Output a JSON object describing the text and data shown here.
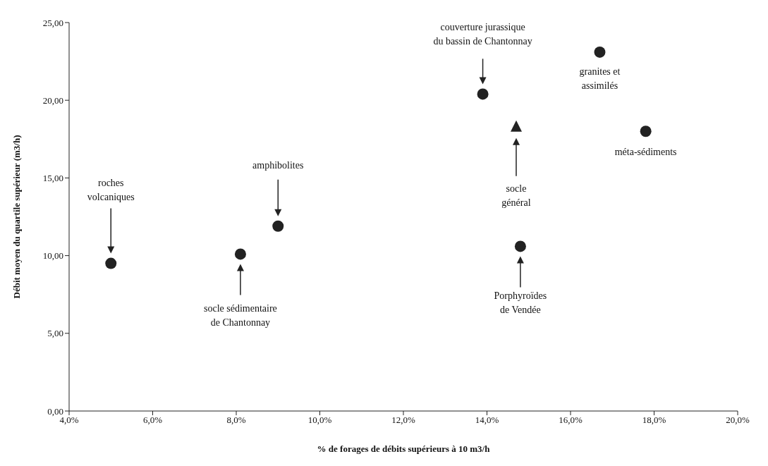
{
  "chart_data": {
    "type": "scatter",
    "xlabel": "% de forages de débits supérieurs à 10 m3/h",
    "ylabel": "Débit moyen du quartile supérieur (m3/h)",
    "series": [
      {
        "marker": "circle",
        "color": "#222222",
        "x": [
          5.0,
          8.1,
          9.0,
          13.9,
          16.7,
          17.8,
          14.8
        ],
        "values": [
          9.5,
          10.1,
          11.9,
          20.4,
          23.1,
          18.0,
          10.6
        ]
      },
      {
        "marker": "triangle",
        "color": "#222222",
        "x": [
          14.7
        ],
        "values": [
          18.3
        ]
      }
    ],
    "xlim": [
      4,
      20
    ],
    "xticks": [
      {
        "value": 4,
        "label": "4,0%"
      },
      {
        "value": 6,
        "label": "6,0%"
      },
      {
        "value": 8,
        "label": "8,0%"
      },
      {
        "value": 10,
        "label": "10,0%"
      },
      {
        "value": 12,
        "label": "12,0%"
      },
      {
        "value": 14,
        "label": "14,0%"
      },
      {
        "value": 16,
        "label": "16,0%"
      },
      {
        "value": 18,
        "label": "18,0%"
      },
      {
        "value": 20,
        "label": "20,0%"
      }
    ],
    "ylim": [
      0,
      25
    ],
    "yticks": [
      {
        "value": 0,
        "label": "0,00"
      },
      {
        "value": 5,
        "label": "5,00"
      },
      {
        "value": 10,
        "label": "10,00"
      },
      {
        "value": 15,
        "label": "15,00"
      },
      {
        "value": 20,
        "label": "20,00"
      },
      {
        "value": 25,
        "label": "25,00"
      }
    ],
    "grid": false,
    "legend": false,
    "annotations": [
      "roches\nvolcaniques",
      "socle sédimentaire\nde Chantonnay",
      "amphibolites",
      "couverture jurassique\ndu bassin de Chantonnay",
      "granites et\nassimilés",
      "méta-sédiments",
      "socle\ngénéral",
      "Porphyroïdes\nde Vendée"
    ]
  }
}
